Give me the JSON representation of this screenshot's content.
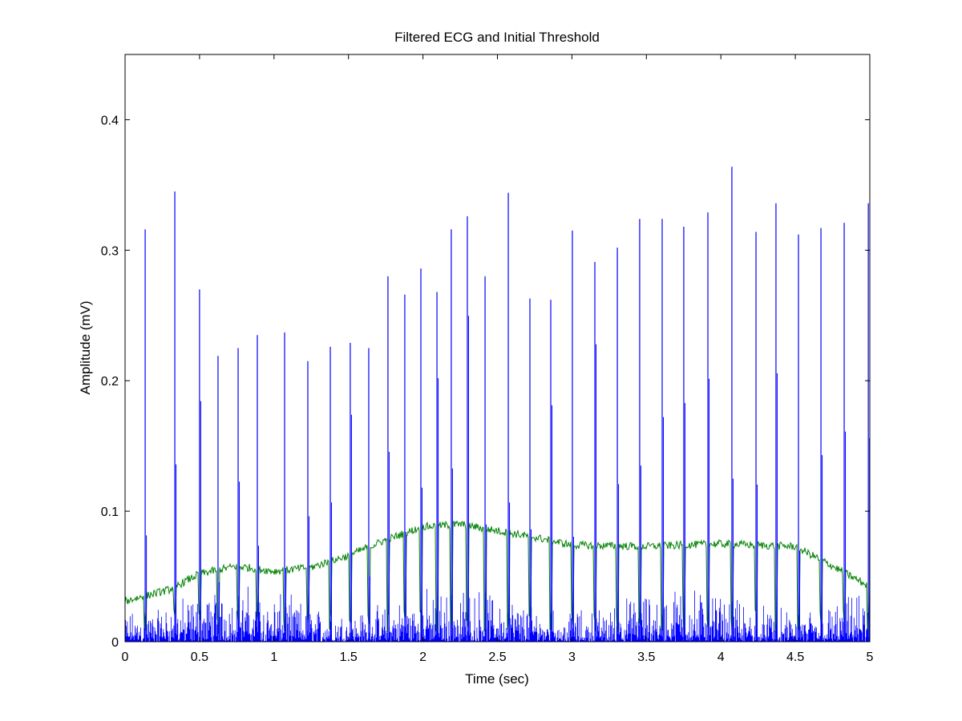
{
  "chart_data": {
    "type": "line",
    "title": "Filtered ECG and Initial Threshold",
    "xlabel": "Time (sec)",
    "ylabel": "Amplitude (mV)",
    "xlim": [
      0,
      5
    ],
    "ylim": [
      0,
      0.45
    ],
    "xticks": [
      "0",
      "0.5",
      "1",
      "1.5",
      "2",
      "2.5",
      "3",
      "3.5",
      "4",
      "4.5",
      "5"
    ],
    "yticks": [
      "0",
      "0.1",
      "0.2",
      "0.3",
      "0.4"
    ],
    "grid": false,
    "series": [
      {
        "color": "#0000ff",
        "description_marks": "filtered ECG; R-peak spikes over low-amplitude noise (approx 0-0.03)",
        "peaks": [
          {
            "x": 0.135,
            "y": 0.316
          },
          {
            "x": 0.334,
            "y": 0.345
          },
          {
            "x": 0.5,
            "y": 0.27
          },
          {
            "x": 0.624,
            "y": 0.219
          },
          {
            "x": 0.759,
            "y": 0.225
          },
          {
            "x": 0.888,
            "y": 0.235
          },
          {
            "x": 1.071,
            "y": 0.237
          },
          {
            "x": 1.227,
            "y": 0.215
          },
          {
            "x": 1.378,
            "y": 0.226
          },
          {
            "x": 1.512,
            "y": 0.229
          },
          {
            "x": 1.636,
            "y": 0.225
          },
          {
            "x": 1.765,
            "y": 0.28
          },
          {
            "x": 1.878,
            "y": 0.266
          },
          {
            "x": 1.986,
            "y": 0.286
          },
          {
            "x": 2.094,
            "y": 0.268
          },
          {
            "x": 2.19,
            "y": 0.316
          },
          {
            "x": 2.298,
            "y": 0.326
          },
          {
            "x": 2.417,
            "y": 0.28
          },
          {
            "x": 2.573,
            "y": 0.344
          },
          {
            "x": 2.718,
            "y": 0.263
          },
          {
            "x": 2.858,
            "y": 0.262
          },
          {
            "x": 3.003,
            "y": 0.315
          },
          {
            "x": 3.154,
            "y": 0.291
          },
          {
            "x": 3.305,
            "y": 0.302
          },
          {
            "x": 3.455,
            "y": 0.324
          },
          {
            "x": 3.606,
            "y": 0.324
          },
          {
            "x": 3.751,
            "y": 0.318
          },
          {
            "x": 3.913,
            "y": 0.329
          },
          {
            "x": 4.074,
            "y": 0.364
          },
          {
            "x": 4.236,
            "y": 0.314
          },
          {
            "x": 4.37,
            "y": 0.336
          },
          {
            "x": 4.521,
            "y": 0.312
          },
          {
            "x": 4.672,
            "y": 0.317
          },
          {
            "x": 4.828,
            "y": 0.321
          },
          {
            "x": 4.99,
            "y": 0.336
          }
        ]
      },
      {
        "color": "#008000",
        "x": [
          0,
          0.3,
          0.5,
          0.75,
          1.0,
          1.25,
          1.5,
          1.75,
          2.0,
          2.25,
          2.5,
          2.75,
          3.0,
          3.5,
          4.0,
          4.5,
          4.75,
          5.0
        ],
        "y": [
          0.031,
          0.04,
          0.052,
          0.058,
          0.054,
          0.057,
          0.066,
          0.078,
          0.088,
          0.09,
          0.085,
          0.08,
          0.074,
          0.073,
          0.075,
          0.073,
          0.058,
          0.042
        ]
      }
    ]
  }
}
